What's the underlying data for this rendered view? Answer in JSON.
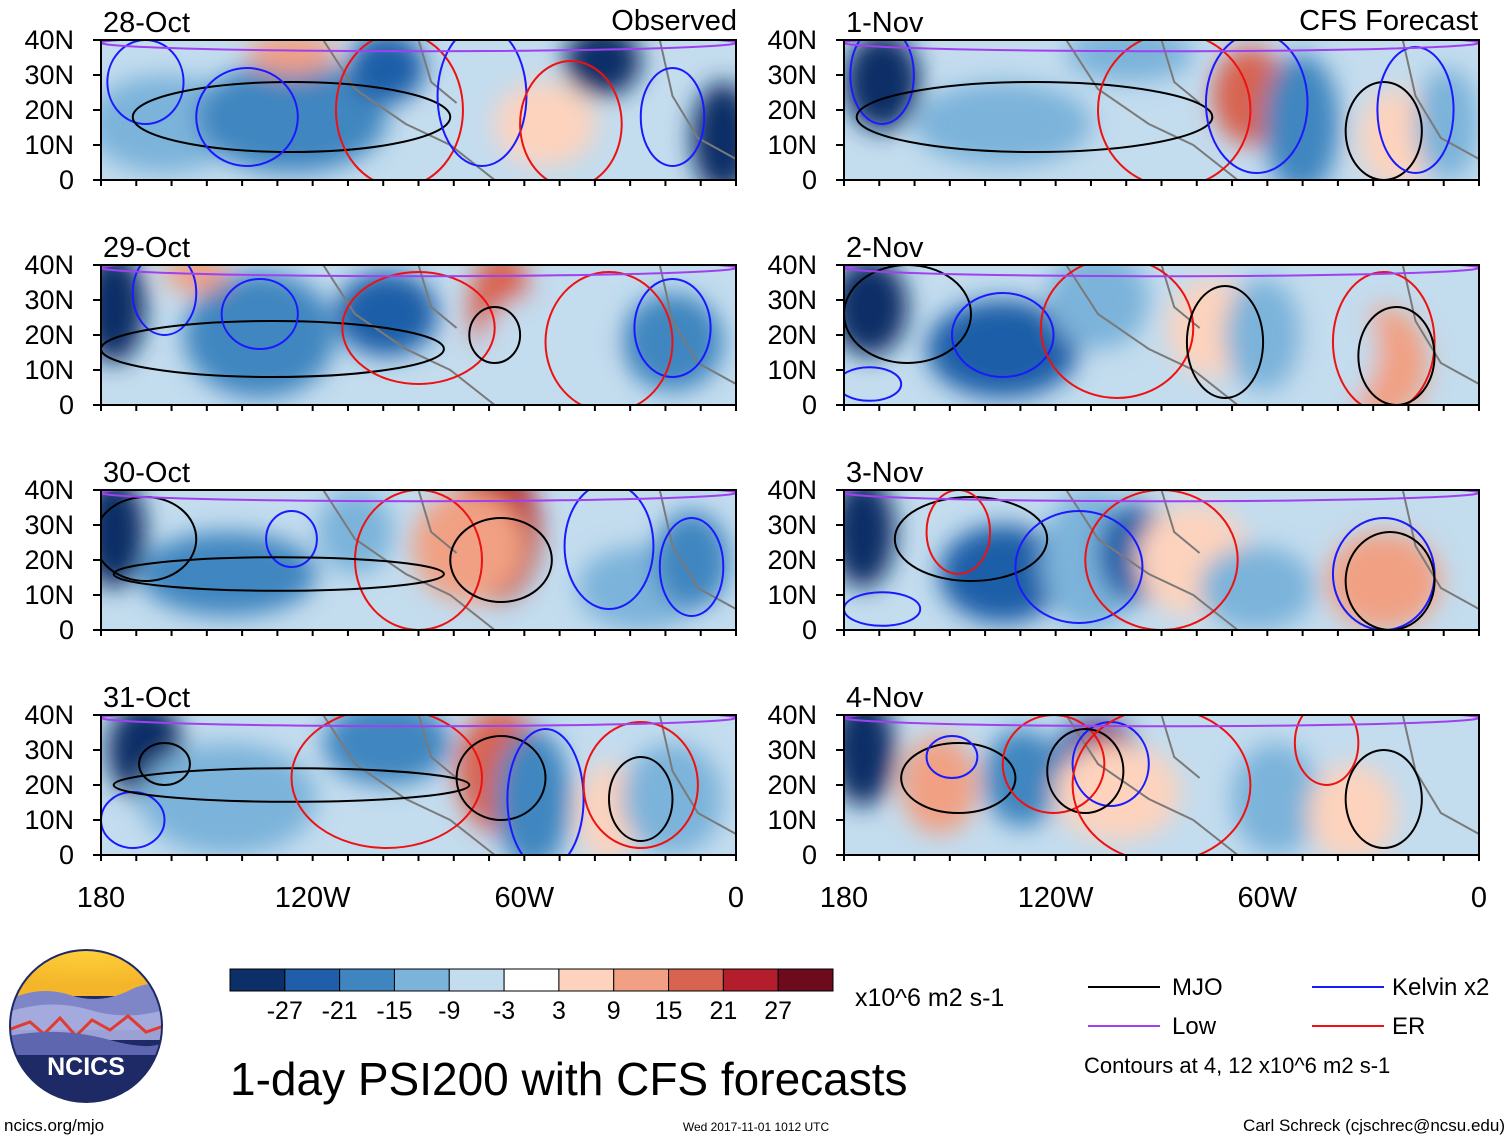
{
  "title": "1-day PSI200 with CFS forecasts",
  "labels": {
    "observed": "Observed",
    "forecast": "CFS Forecast"
  },
  "panels": {
    "observed": [
      {
        "date": "28-Oct"
      },
      {
        "date": "29-Oct"
      },
      {
        "date": "30-Oct"
      },
      {
        "date": "31-Oct"
      }
    ],
    "forecast": [
      {
        "date": "1-Nov"
      },
      {
        "date": "2-Nov"
      },
      {
        "date": "3-Nov"
      },
      {
        "date": "4-Nov"
      }
    ]
  },
  "lat_ticks": [
    "40N",
    "30N",
    "20N",
    "10N",
    "0"
  ],
  "lon_ticks": [
    "180",
    "120W",
    "60W",
    "0"
  ],
  "colorbar": {
    "unit": "x10^6 m2 s-1",
    "tick_labels": [
      "-27",
      "-21",
      "-15",
      "-9",
      "-3",
      "3",
      "9",
      "15",
      "21",
      "27"
    ],
    "colors": [
      "#0b2f66",
      "#1f5ea8",
      "#3f86c0",
      "#7bb3da",
      "#c3dcee",
      "#ffffff",
      "#fdd3bd",
      "#f1a083",
      "#d8634f",
      "#b31d2c",
      "#6d0b1c"
    ]
  },
  "legend": {
    "items": [
      {
        "label": "MJO",
        "color": "#000000"
      },
      {
        "label": "Kelvin x2",
        "color": "#1a1aff"
      },
      {
        "label": "Low",
        "color": "#a040f0"
      },
      {
        "label": "ER",
        "color": "#ee1111"
      }
    ],
    "note": "Contours at 4, 12 x10^6 m2 s-1"
  },
  "logo": {
    "text": "NCICS"
  },
  "footer": {
    "url": "ncics.org/mjo",
    "timestamp": "Wed 2017-11-01 1012 UTC",
    "author": "Carl Schreck (cjschrec@ncsu.edu)"
  }
}
